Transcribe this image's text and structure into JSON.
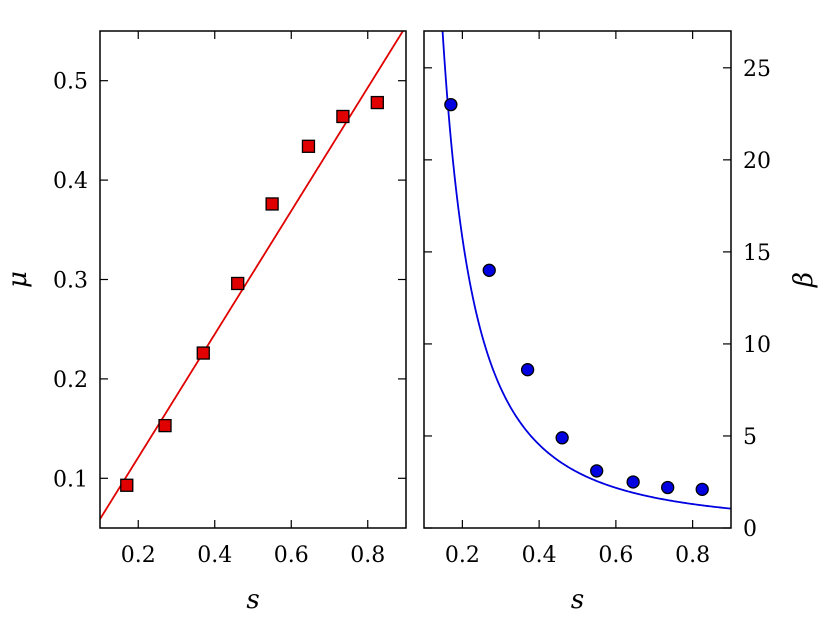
{
  "chart_data": [
    {
      "type": "scatter",
      "xlabel": "s",
      "ylabel": "μ",
      "xlim": [
        0.1,
        0.9
      ],
      "ylim": [
        0.05,
        0.55
      ],
      "xticks": [
        "0.2",
        "0.4",
        "0.6",
        "0.8"
      ],
      "yticks": [
        "0.1",
        "0.2",
        "0.3",
        "0.4",
        "0.5"
      ],
      "y_axis_side": "left",
      "grid": false,
      "marker": "square",
      "series": [
        {
          "x": [
            0.17,
            0.27,
            0.37,
            0.46,
            0.55,
            0.645,
            0.735,
            0.825
          ],
          "y": [
            0.093,
            0.153,
            0.226,
            0.296,
            0.376,
            0.434,
            0.464,
            0.478
          ],
          "color": "#e00000"
        }
      ],
      "fit": {
        "kind": "linear",
        "slope": 0.62,
        "intercept": -0.003,
        "color": "#e00000"
      }
    },
    {
      "type": "scatter",
      "xlabel": "s",
      "ylabel": "β",
      "xlim": [
        0.1,
        0.9
      ],
      "ylim": [
        0,
        27
      ],
      "xticks": [
        "0.2",
        "0.4",
        "0.6",
        "0.8"
      ],
      "yticks": [
        "0",
        "5",
        "10",
        "15",
        "20",
        "25"
      ],
      "y_axis_side": "right",
      "grid": false,
      "marker": "circle",
      "series": [
        {
          "x": [
            0.17,
            0.27,
            0.37,
            0.46,
            0.55,
            0.645,
            0.735,
            0.825
          ],
          "y": [
            23,
            14,
            8.6,
            4.9,
            3.1,
            2.5,
            2.2,
            2.1
          ],
          "color": "#0000e0"
        }
      ],
      "fit": {
        "kind": "power",
        "coefficient": 0.87,
        "exponent": -1.8,
        "color": "#0000e0"
      }
    }
  ]
}
